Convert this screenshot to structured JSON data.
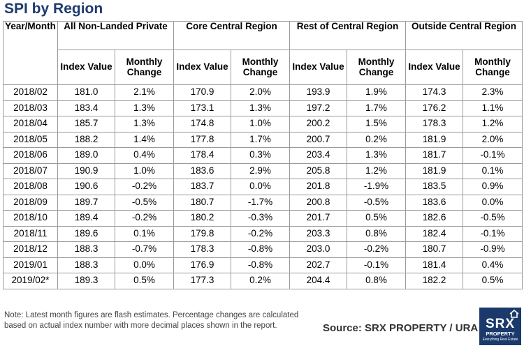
{
  "title": "SPI by Region",
  "headers": {
    "year_month": "Year/Month",
    "regions": [
      "All Non-Landed Private",
      "Core Central Region",
      "Rest of Central Region",
      "Outside Central Region"
    ],
    "index_value": "Index Value",
    "monthly_change": "Monthly Change"
  },
  "rows": [
    {
      "ym": "2018/02",
      "v": [
        "181.0",
        "2.1%",
        "170.9",
        "2.0%",
        "193.9",
        "1.9%",
        "174.3",
        "2.3%"
      ]
    },
    {
      "ym": "2018/03",
      "v": [
        "183.4",
        "1.3%",
        "173.1",
        "1.3%",
        "197.2",
        "1.7%",
        "176.2",
        "1.1%"
      ]
    },
    {
      "ym": "2018/04",
      "v": [
        "185.7",
        "1.3%",
        "174.8",
        "1.0%",
        "200.2",
        "1.5%",
        "178.3",
        "1.2%"
      ]
    },
    {
      "ym": "2018/05",
      "v": [
        "188.2",
        "1.4%",
        "177.8",
        "1.7%",
        "200.7",
        "0.2%",
        "181.9",
        "2.0%"
      ]
    },
    {
      "ym": "2018/06",
      "v": [
        "189.0",
        "0.4%",
        "178.4",
        "0.3%",
        "203.4",
        "1.3%",
        "181.7",
        "-0.1%"
      ]
    },
    {
      "ym": "2018/07",
      "v": [
        "190.9",
        "1.0%",
        "183.6",
        "2.9%",
        "205.8",
        "1.2%",
        "181.9",
        "0.1%"
      ]
    },
    {
      "ym": "2018/08",
      "v": [
        "190.6",
        "-0.2%",
        "183.7",
        "0.0%",
        "201.8",
        "-1.9%",
        "183.5",
        "0.9%"
      ]
    },
    {
      "ym": "2018/09",
      "v": [
        "189.7",
        "-0.5%",
        "180.7",
        "-1.7%",
        "200.8",
        "-0.5%",
        "183.6",
        "0.0%"
      ]
    },
    {
      "ym": "2018/10",
      "v": [
        "189.4",
        "-0.2%",
        "180.2",
        "-0.3%",
        "201.7",
        "0.5%",
        "182.6",
        "-0.5%"
      ]
    },
    {
      "ym": "2018/11",
      "v": [
        "189.6",
        "0.1%",
        "179.8",
        "-0.2%",
        "203.3",
        "0.8%",
        "182.4",
        "-0.1%"
      ]
    },
    {
      "ym": "2018/12",
      "v": [
        "188.3",
        "-0.7%",
        "178.3",
        "-0.8%",
        "203.0",
        "-0.2%",
        "180.7",
        "-0.9%"
      ]
    },
    {
      "ym": "2019/01",
      "v": [
        "188.3",
        "0.0%",
        "176.9",
        "-0.8%",
        "202.7",
        "-0.1%",
        "181.4",
        "0.4%"
      ]
    },
    {
      "ym": "2019/02*",
      "v": [
        "189.3",
        "0.5%",
        "177.3",
        "0.2%",
        "204.4",
        "0.8%",
        "182.2",
        "0.5%"
      ]
    }
  ],
  "note": "Note: Latest month figures are flash estimates. Percentage changes are calculated based on actual index number with more decimal places shown in the report.",
  "source": "Source:  SRX PROPERTY / URA",
  "logo": {
    "brand": "SRX",
    "sub": "PROPERTY",
    "tagline": "Everything Real Estate"
  },
  "colors": {
    "title": "#1f3b6e",
    "logo_bg": "#1b3a6b",
    "grid": "#9a9a9a"
  }
}
